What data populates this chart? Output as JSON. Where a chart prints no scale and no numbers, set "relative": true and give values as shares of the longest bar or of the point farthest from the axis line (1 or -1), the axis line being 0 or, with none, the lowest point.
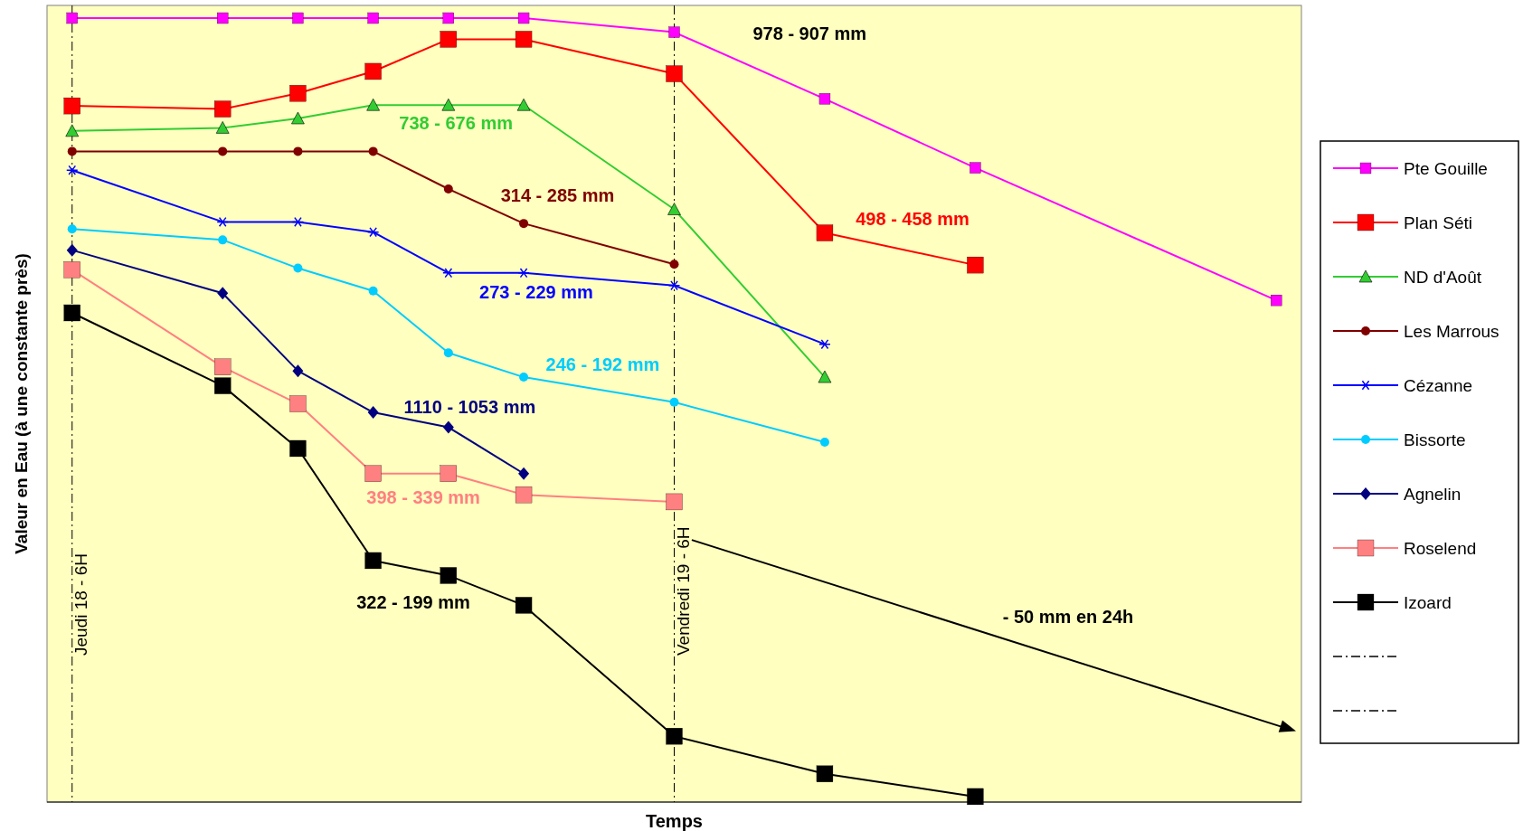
{
  "chart_data": {
    "type": "line",
    "relative": true,
    "xlabel": "Temps",
    "ylabel": "Valeur en Eau (à une constante près)",
    "legend": "right",
    "categories": [
      null,
      null,
      null,
      null,
      null,
      null,
      null,
      null,
      null,
      null,
      null,
      null,
      null,
      null,
      null,
      null,
      null
    ],
    "series": [
      {
        "name": "Pte Gouille",
        "color": "#ff00ff",
        "marker": "square",
        "values": [
          1.0,
          null,
          1.0,
          1.0,
          1.0,
          1.0,
          1.0,
          null,
          0.982,
          null,
          0.897,
          null,
          0.809,
          null,
          null,
          null,
          0.64
        ]
      },
      {
        "name": "Plan Séti",
        "color": "#ff0000",
        "marker": "square",
        "values": [
          0.888,
          null,
          0.884,
          0.904,
          0.932,
          0.973,
          0.973,
          null,
          0.929,
          null,
          0.726,
          null,
          0.685,
          null,
          null,
          null,
          null
        ]
      },
      {
        "name": "ND d'Août",
        "color": "#33cc33",
        "marker": "triangle",
        "values": [
          0.856,
          null,
          0.86,
          0.872,
          0.889,
          0.889,
          0.889,
          null,
          0.756,
          null,
          0.542,
          null,
          null,
          null,
          null,
          null,
          null
        ]
      },
      {
        "name": "Les Marrous",
        "color": "#800000",
        "marker": "circle",
        "values": [
          0.83,
          null,
          0.83,
          0.83,
          0.83,
          0.782,
          0.738,
          null,
          0.686,
          null,
          null,
          null,
          null,
          null,
          null,
          null,
          null
        ]
      },
      {
        "name": "Cézanne",
        "color": "#0000ff",
        "marker": "cross",
        "values": [
          0.806,
          null,
          0.74,
          0.74,
          0.727,
          0.675,
          0.675,
          null,
          0.659,
          null,
          0.584,
          null,
          null,
          null,
          null,
          null,
          null
        ]
      },
      {
        "name": "Bissorte",
        "color": "#00ccff",
        "marker": "circle",
        "values": [
          0.731,
          null,
          0.717,
          0.681,
          0.652,
          0.573,
          0.542,
          null,
          0.51,
          null,
          0.459,
          null,
          null,
          null,
          null,
          null,
          null
        ]
      },
      {
        "name": "Agnelin",
        "color": "#000080",
        "marker": "diamond",
        "values": [
          0.704,
          null,
          0.649,
          0.55,
          0.497,
          0.478,
          0.419,
          null,
          null,
          null,
          null,
          null,
          null,
          null,
          null,
          null,
          null
        ]
      },
      {
        "name": "Roselend",
        "color": "#ff8080",
        "marker": "square",
        "values": [
          0.679,
          null,
          0.555,
          0.508,
          0.419,
          0.419,
          0.392,
          null,
          0.383,
          null,
          null,
          null,
          null,
          null,
          null,
          null,
          null
        ]
      },
      {
        "name": "Izoard",
        "color": "#000000",
        "marker": "square",
        "values": [
          0.624,
          null,
          0.531,
          0.451,
          0.308,
          0.289,
          0.251,
          null,
          0.084,
          null,
          0.036,
          null,
          0.007,
          null,
          null,
          null,
          null
        ]
      }
    ],
    "annotations": [
      "978 - 907 mm",
      "738 - 676 mm",
      "314 - 285 mm",
      "498 - 458 mm",
      "273 - 229 mm",
      "246 - 192 mm",
      "1110 - 1053 mm",
      "398 - 339 mm",
      "322 - 199 mm",
      "- 50 mm en 24h",
      "Jeudi 18 - 6H",
      "Vendredi 19 - 6H"
    ]
  }
}
